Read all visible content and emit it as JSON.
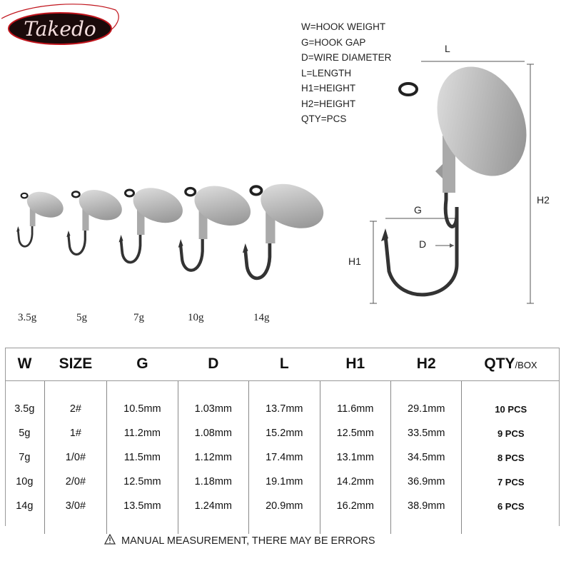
{
  "logo": {
    "text": "TAKEDO",
    "colors": {
      "oval": "#1a0a0a",
      "accent": "#c0141c"
    }
  },
  "legend": [
    "W=HOOK WEIGHT",
    "G=HOOK GAP",
    "D=WIRE DIAMETER",
    "L=LENGTH",
    "H1=HEIGHT",
    "H2=HEIGHT",
    "QTY=PCS"
  ],
  "diagram": {
    "L": "L",
    "G": "G",
    "D": "D",
    "H1": "H1",
    "H2": "H2"
  },
  "hook_weights": [
    "3.5g",
    "5g",
    "7g",
    "10g",
    "14g"
  ],
  "table": {
    "headers": [
      "W",
      "SIZE",
      "G",
      "D",
      "L",
      "H1",
      "H2",
      "QTY"
    ],
    "qty_suffix": "/BOX",
    "rows": [
      [
        "3.5g",
        "2#",
        "10.5mm",
        "1.03mm",
        "13.7mm",
        "11.6mm",
        "29.1mm",
        "10 PCS"
      ],
      [
        "5g",
        "1#",
        "11.2mm",
        "1.08mm",
        "15.2mm",
        "12.5mm",
        "33.5mm",
        "9 PCS"
      ],
      [
        "7g",
        "1/0#",
        "11.5mm",
        "1.12mm",
        "17.4mm",
        "13.1mm",
        "34.5mm",
        "8 PCS"
      ],
      [
        "10g",
        "2/0#",
        "12.5mm",
        "1.18mm",
        "19.1mm",
        "14.2mm",
        "36.9mm",
        "7 PCS"
      ],
      [
        "14g",
        "3/0#",
        "13.5mm",
        "1.24mm",
        "20.9mm",
        "16.2mm",
        "38.9mm",
        "6 PCS"
      ]
    ]
  },
  "note": {
    "icon": "warning-icon",
    "text": "MANUAL MEASUREMENT, THERE MAY BE ERRORS"
  }
}
